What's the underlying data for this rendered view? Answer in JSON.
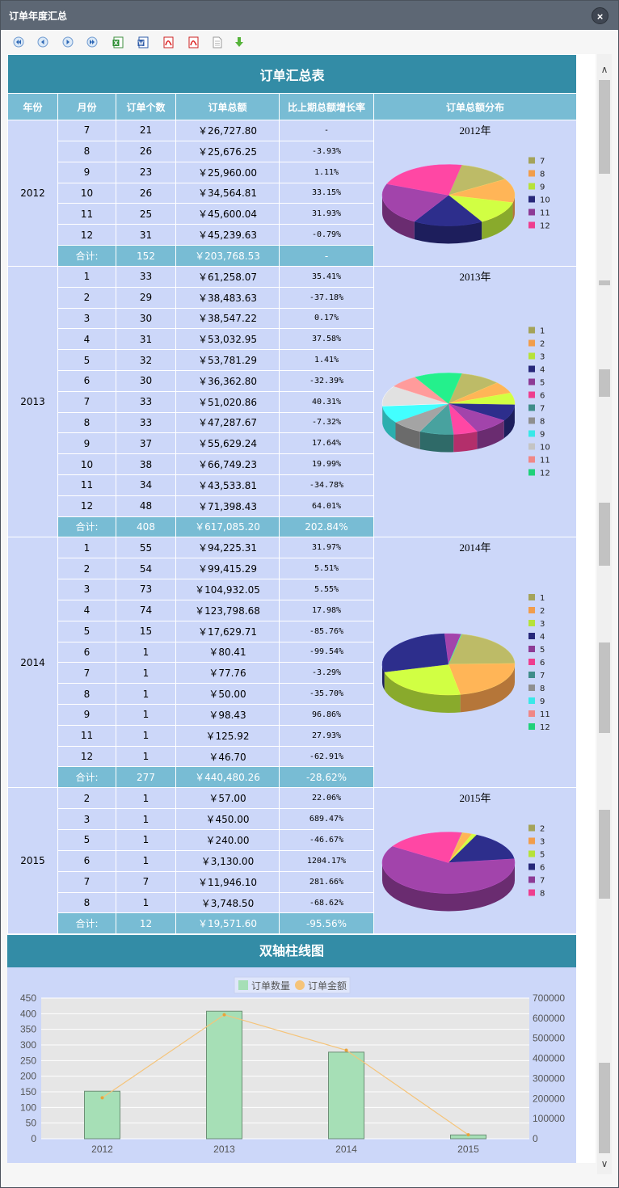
{
  "window": {
    "title": "订单年度汇总",
    "close_glyph": "×"
  },
  "toolbar": [
    {
      "icon": "first-page-icon"
    },
    {
      "icon": "prev-page-icon"
    },
    {
      "icon": "next-page-icon"
    },
    {
      "icon": "last-page-icon"
    },
    {
      "icon": "excel-export-icon"
    },
    {
      "icon": "word-export-icon"
    },
    {
      "icon": "pdf-export-icon"
    },
    {
      "icon": "pdf-export-icon"
    },
    {
      "icon": "text-export-icon"
    },
    {
      "icon": "download-icon"
    }
  ],
  "report": {
    "title": "订单汇总表",
    "columns": [
      "年份",
      "月份",
      "订单个数",
      "订单总额",
      "比上期总额增长率",
      "订单总额分布"
    ],
    "years": [
      {
        "year": "2012",
        "pie_title": "2012年",
        "rows": [
          [
            "7",
            "21",
            "￥26,727.80",
            "-"
          ],
          [
            "8",
            "26",
            "￥25,676.25",
            "-3.93%"
          ],
          [
            "9",
            "23",
            "￥25,960.00",
            "1.11%"
          ],
          [
            "10",
            "26",
            "￥34,564.81",
            "33.15%"
          ],
          [
            "11",
            "25",
            "￥45,600.04",
            "31.93%"
          ],
          [
            "12",
            "31",
            "￥45,239.63",
            "-0.79%"
          ]
        ],
        "sum": [
          "合计:",
          "152",
          "￥203,768.53",
          "-"
        ],
        "legend": [
          "7",
          "8",
          "9",
          "10",
          "11",
          "12"
        ],
        "values": [
          26727.8,
          25676.25,
          25960.0,
          34564.81,
          45600.04,
          45239.63
        ]
      },
      {
        "year": "2013",
        "pie_title": "2013年",
        "rows": [
          [
            "1",
            "33",
            "￥61,258.07",
            "35.41%"
          ],
          [
            "2",
            "29",
            "￥38,483.63",
            "-37.18%"
          ],
          [
            "3",
            "30",
            "￥38,547.22",
            "0.17%"
          ],
          [
            "4",
            "31",
            "￥53,032.95",
            "37.58%"
          ],
          [
            "5",
            "32",
            "￥53,781.29",
            "1.41%"
          ],
          [
            "6",
            "30",
            "￥36,362.80",
            "-32.39%"
          ],
          [
            "7",
            "33",
            "￥51,020.86",
            "40.31%"
          ],
          [
            "8",
            "33",
            "￥47,287.67",
            "-7.32%"
          ],
          [
            "9",
            "37",
            "￥55,629.24",
            "17.64%"
          ],
          [
            "10",
            "38",
            "￥66,749.23",
            "19.99%"
          ],
          [
            "11",
            "34",
            "￥43,533.81",
            "-34.78%"
          ],
          [
            "12",
            "48",
            "￥71,398.43",
            "64.01%"
          ]
        ],
        "sum": [
          "合计:",
          "408",
          "￥617,085.20",
          "202.84%"
        ],
        "legend": [
          "1",
          "2",
          "3",
          "4",
          "5",
          "6",
          "7",
          "8",
          "9",
          "10",
          "11",
          "12"
        ],
        "values": [
          61258.07,
          38483.63,
          38547.22,
          53032.95,
          53781.29,
          36362.8,
          51020.86,
          47287.67,
          55629.24,
          66749.23,
          43533.81,
          71398.43
        ]
      },
      {
        "year": "2014",
        "pie_title": "2014年",
        "rows": [
          [
            "1",
            "55",
            "￥94,225.31",
            "31.97%"
          ],
          [
            "2",
            "54",
            "￥99,415.29",
            "5.51%"
          ],
          [
            "3",
            "73",
            "￥104,932.05",
            "5.55%"
          ],
          [
            "4",
            "74",
            "￥123,798.68",
            "17.98%"
          ],
          [
            "5",
            "15",
            "￥17,629.71",
            "-85.76%"
          ],
          [
            "6",
            "1",
            "￥80.41",
            "-99.54%"
          ],
          [
            "7",
            "1",
            "￥77.76",
            "-3.29%"
          ],
          [
            "8",
            "1",
            "￥50.00",
            "-35.70%"
          ],
          [
            "9",
            "1",
            "￥98.43",
            "96.86%"
          ],
          [
            "11",
            "1",
            "￥125.92",
            "27.93%"
          ],
          [
            "12",
            "1",
            "￥46.70",
            "-62.91%"
          ]
        ],
        "sum": [
          "合计:",
          "277",
          "￥440,480.26",
          "-28.62%"
        ],
        "legend": [
          "1",
          "2",
          "3",
          "4",
          "5",
          "6",
          "7",
          "8",
          "9",
          "11",
          "12"
        ],
        "values": [
          94225.31,
          99415.29,
          104932.05,
          123798.68,
          17629.71,
          80.41,
          77.76,
          50.0,
          98.43,
          125.92,
          46.7
        ]
      },
      {
        "year": "2015",
        "pie_title": "2015年",
        "rows": [
          [
            "2",
            "1",
            "￥57.00",
            "22.06%"
          ],
          [
            "3",
            "1",
            "￥450.00",
            "689.47%"
          ],
          [
            "5",
            "1",
            "￥240.00",
            "-46.67%"
          ],
          [
            "6",
            "1",
            "￥3,130.00",
            "1204.17%"
          ],
          [
            "7",
            "7",
            "￥11,946.10",
            "281.66%"
          ],
          [
            "8",
            "1",
            "￥3,748.50",
            "-68.62%"
          ]
        ],
        "sum": [
          "合计:",
          "12",
          "￥19,571.60",
          "-95.56%"
        ],
        "legend": [
          "2",
          "3",
          "5",
          "6",
          "7",
          "8"
        ],
        "values": [
          57.0,
          450.0,
          240.0,
          3130.0,
          11946.1,
          3748.5
        ]
      }
    ],
    "pie_colors": {
      "1": "#a4a35a",
      "2": "#f19d4c",
      "3": "#b6e23a",
      "4": "#27287a",
      "5": "#8d3b95",
      "6": "#ee3e8f",
      "7": "#3f8d8a",
      "8": "#8f8f8f",
      "9": "#39e8e8",
      "10": "#c4c4c4",
      "11": "#f08787",
      "12": "#1fd17a"
    },
    "pie_colors_by_year": {
      "2012": {
        "7": "#a4a35a",
        "8": "#f19d4c",
        "9": "#b6e23a",
        "10": "#27287a",
        "11": "#8d3b95",
        "12": "#ee3e8f"
      },
      "2015": {
        "2": "#a4a35a",
        "3": "#f19d4c",
        "5": "#b6e23a",
        "6": "#27287a",
        "7": "#8d3b95",
        "8": "#ee3e8f"
      }
    }
  },
  "chart": {
    "title": "双轴柱线图",
    "legend": [
      "订单数量",
      "订单金额"
    ]
  },
  "chart_data": {
    "type": "bar",
    "title": "双轴柱线图",
    "categories": [
      "2012",
      "2013",
      "2014",
      "2015"
    ],
    "series": [
      {
        "name": "订单数量",
        "type": "bar",
        "axis": "left",
        "values": [
          152,
          408,
          277,
          12
        ],
        "color": "#a6dfb6"
      },
      {
        "name": "订单金额",
        "type": "line",
        "axis": "right",
        "values": [
          203768.53,
          617085.2,
          440480.26,
          19571.6
        ],
        "color": "#f5c47a"
      }
    ],
    "y_left": {
      "ylim": [
        0,
        450
      ],
      "ticks": [
        "0",
        "50",
        "100",
        "150",
        "200",
        "250",
        "300",
        "350",
        "400",
        "450"
      ]
    },
    "y_right": {
      "ylim": [
        0,
        700000
      ],
      "ticks": [
        "0",
        "100000",
        "200000",
        "300000",
        "400000",
        "500000",
        "600000",
        "700000"
      ]
    },
    "grid": true,
    "legend_position": "top-center"
  }
}
